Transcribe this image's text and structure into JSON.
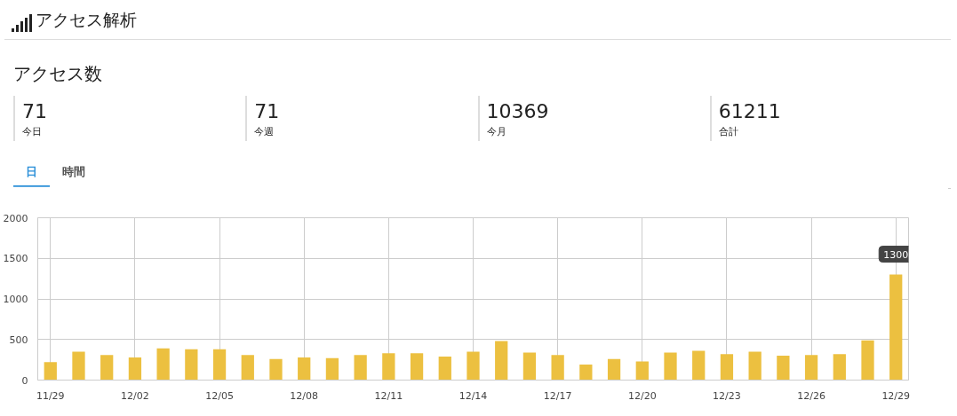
{
  "chart_data": {
    "type": "bar",
    "title": "アクセス解析",
    "subtitle": "アクセス数",
    "categories": [
      "11/29",
      null,
      null,
      "12/02",
      null,
      null,
      "12/05",
      null,
      null,
      "12/08",
      null,
      null,
      "12/11",
      null,
      null,
      "12/14",
      null,
      null,
      "12/17",
      null,
      null,
      "12/20",
      null,
      null,
      "12/23",
      null,
      null,
      "12/26",
      null,
      null,
      "12/29"
    ],
    "values": [
      220,
      350,
      310,
      280,
      390,
      380,
      380,
      310,
      260,
      280,
      270,
      310,
      330,
      330,
      290,
      350,
      480,
      340,
      310,
      190,
      260,
      230,
      340,
      360,
      320,
      350,
      300,
      310,
      320,
      490,
      1300
    ],
    "color": "#ecc040",
    "ylim": [
      0,
      2000
    ],
    "yticks": [
      0,
      500,
      1000,
      1500,
      2000
    ],
    "grid": true,
    "annotations": [
      "71",
      "今日",
      "71",
      "今週",
      "10369",
      "今月",
      "61211",
      "合計",
      "日",
      "時間",
      {
        "text": "1300",
        "x": "12/29",
        "y": 1300
      }
    ]
  }
}
